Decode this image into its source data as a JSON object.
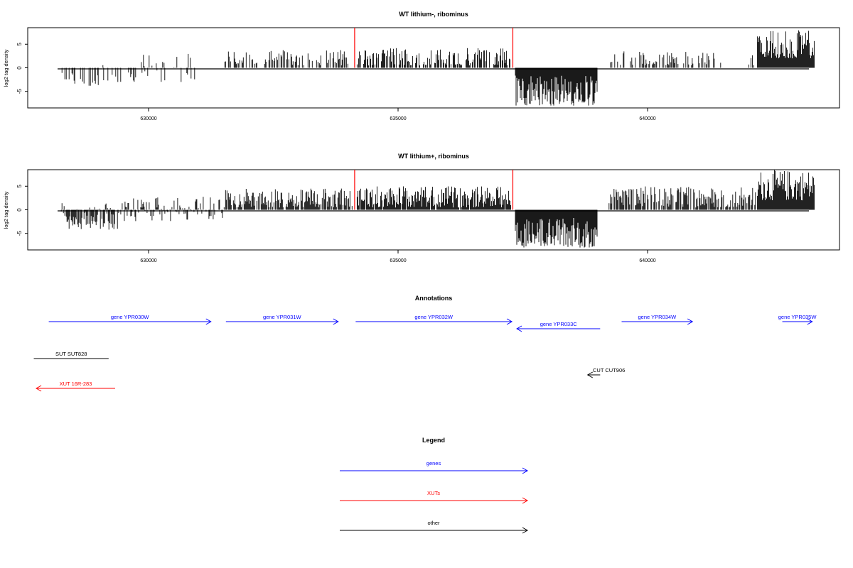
{
  "chart_data": [
    {
      "type": "bar",
      "title": "WT lithium-, ribominus",
      "ylabel": "log2 tag density",
      "xlim": [
        628200,
        643400
      ],
      "ylim": [
        -8.5,
        8.5
      ],
      "x_ticks": [
        630000,
        635000,
        640000
      ],
      "x_tick_labels": [
        "630000",
        "635000",
        "640000"
      ],
      "y_ticks": [
        -5,
        0,
        5
      ],
      "y_tick_labels": [
        "-5",
        "0",
        "5"
      ],
      "grid": false,
      "bar_color": "#000000",
      "marker_color": "#ff0000",
      "markers": [
        {
          "x": 634130,
          "y": 8.5
        },
        {
          "x": 637300,
          "y": 8.5
        }
      ],
      "regions": [
        {
          "start": 628250,
          "end": 629000,
          "density": 0.35,
          "min": -3.8,
          "max": -0.4
        },
        {
          "start": 629000,
          "end": 631000,
          "density": 0.3,
          "min": -3.0,
          "max": 3.0
        },
        {
          "start": 631500,
          "end": 634000,
          "density": 0.45,
          "min": 0.5,
          "max": 3.8
        },
        {
          "start": 634180,
          "end": 637260,
          "density": 0.65,
          "min": 0.5,
          "max": 4.2
        },
        {
          "start": 637350,
          "end": 639000,
          "density": 1.0,
          "min": -8.0,
          "max": -1.5
        },
        {
          "start": 639200,
          "end": 641500,
          "density": 0.35,
          "min": 0.5,
          "max": 3.5
        },
        {
          "start": 641900,
          "end": 642150,
          "density": 0.3,
          "min": 0.5,
          "max": 3.0
        },
        {
          "start": 642200,
          "end": 643350,
          "density": 1.0,
          "min": 2.0,
          "max": 8.0
        }
      ]
    },
    {
      "type": "bar",
      "title": "WT lithium+, ribominus",
      "ylabel": "log2 tag density",
      "xlim": [
        628200,
        643400
      ],
      "ylim": [
        -8.5,
        8.5
      ],
      "x_ticks": [
        630000,
        635000,
        640000
      ],
      "x_tick_labels": [
        "630000",
        "635000",
        "640000"
      ],
      "y_ticks": [
        -5,
        0,
        5
      ],
      "y_tick_labels": [
        "-5",
        "0",
        "5"
      ],
      "grid": false,
      "bar_color": "#000000",
      "marker_color": "#ff0000",
      "markers": [
        {
          "x": 634130,
          "y": 8.5
        },
        {
          "x": 637300,
          "y": 8.5
        }
      ],
      "regions": [
        {
          "start": 628250,
          "end": 629400,
          "density": 0.9,
          "min": -4.2,
          "max": 1.5
        },
        {
          "start": 629400,
          "end": 631500,
          "density": 0.6,
          "min": -2.5,
          "max": 2.8
        },
        {
          "start": 631500,
          "end": 634100,
          "density": 0.8,
          "min": 0.5,
          "max": 4.5
        },
        {
          "start": 634180,
          "end": 637260,
          "density": 0.95,
          "min": 0.5,
          "max": 5.0
        },
        {
          "start": 637350,
          "end": 639000,
          "density": 1.0,
          "min": -8.0,
          "max": -1.5
        },
        {
          "start": 639200,
          "end": 642200,
          "density": 0.7,
          "min": 0.5,
          "max": 5.0
        },
        {
          "start": 642200,
          "end": 643350,
          "density": 1.0,
          "min": 2.0,
          "max": 8.5
        }
      ]
    }
  ],
  "annotations": {
    "title": "Annotations",
    "features": [
      {
        "label": "gene YPR030W",
        "start": 628000,
        "end": 631250,
        "strand": "+",
        "color": "#0000ff",
        "row": 0
      },
      {
        "label": "gene YPR031W",
        "start": 631550,
        "end": 633800,
        "strand": "+",
        "color": "#0000ff",
        "row": 0
      },
      {
        "label": "gene YPR032W",
        "start": 634150,
        "end": 637280,
        "strand": "+",
        "color": "#0000ff",
        "row": 0
      },
      {
        "label": "gene YPR033C",
        "start": 637380,
        "end": 639050,
        "strand": "-",
        "color": "#0000ff",
        "row": 1
      },
      {
        "label": "gene YPR034W",
        "start": 639480,
        "end": 640900,
        "strand": "+",
        "color": "#0000ff",
        "row": 0
      },
      {
        "label": "gene YPR035W",
        "start": 642700,
        "end": 643300,
        "strand": "+",
        "color": "#0000ff",
        "row": 0
      },
      {
        "label": "SUT SUT828",
        "start": 627700,
        "end": 629200,
        "strand": ".",
        "color": "#000000",
        "row": 2
      },
      {
        "label": "CUT CUT906",
        "start": 638800,
        "end": 639050,
        "strand": "-",
        "color": "#000000",
        "row": 3
      },
      {
        "label": "XUT 16R-283",
        "start": 627750,
        "end": 629330,
        "strand": "-",
        "color": "#ff0000",
        "row": 4
      }
    ]
  },
  "legend": {
    "title": "Legend",
    "items": [
      {
        "label": "genes",
        "color": "#0000ff"
      },
      {
        "label": "XUTs",
        "color": "#ff0000"
      },
      {
        "label": "other",
        "color": "#000000"
      }
    ]
  }
}
